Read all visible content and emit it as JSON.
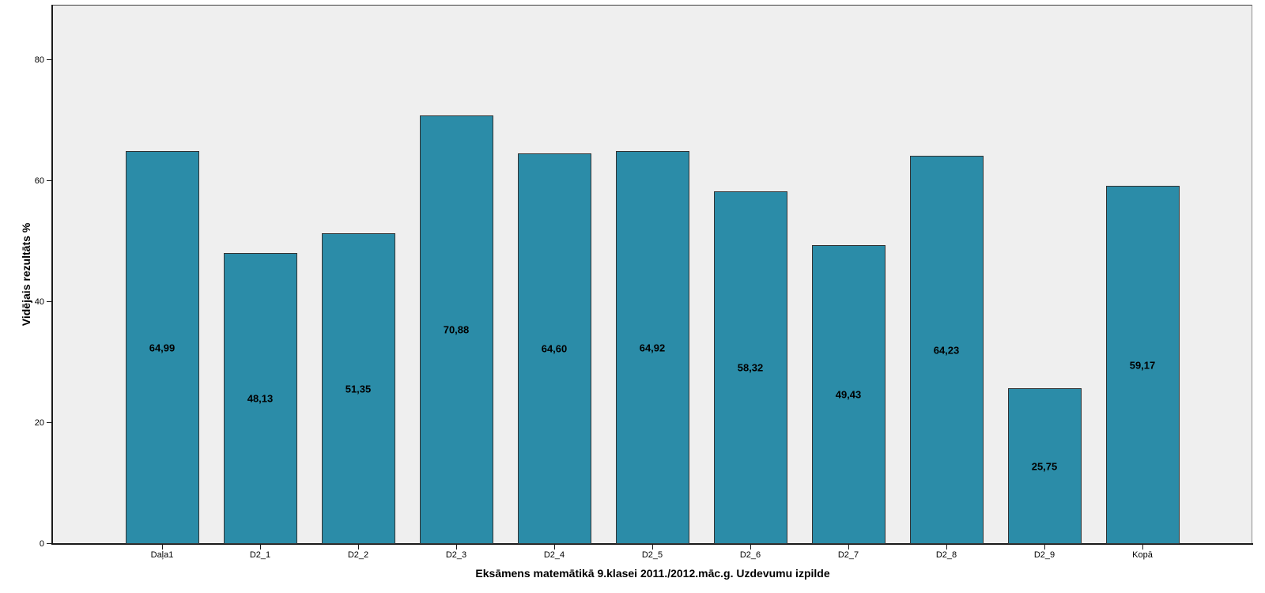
{
  "chart_data": {
    "type": "bar",
    "categories": [
      "Daļa1",
      "D2_1",
      "D2_2",
      "D2_3",
      "D2_4",
      "D2_5",
      "D2_6",
      "D2_7",
      "D2_8",
      "D2_9",
      "Kopā"
    ],
    "values": [
      64.99,
      48.13,
      51.35,
      70.88,
      64.6,
      64.92,
      58.32,
      49.43,
      64.23,
      25.75,
      59.17
    ],
    "value_labels": [
      "64,99",
      "48,13",
      "51,35",
      "70,88",
      "64,60",
      "64,92",
      "58,32",
      "49,43",
      "64,23",
      "25,75",
      "59,17"
    ],
    "title": "",
    "xlabel": "Eksāmens matemātikā 9.klasei 2011./2012.māc.g. Uzdevumu izpilde",
    "ylabel": "Vidējais rezultāts %",
    "yticks": [
      0,
      20,
      40,
      60,
      80
    ],
    "ylim": [
      0,
      89
    ],
    "grid": false,
    "legend": "none",
    "bar_color": "#2B8CA8",
    "bar_border_color": "#333333",
    "plot_background": "#EFEFEF",
    "canvas_background": "#FFFFFF",
    "value_label_position": "center-of-bar",
    "decimal_separator": ","
  }
}
